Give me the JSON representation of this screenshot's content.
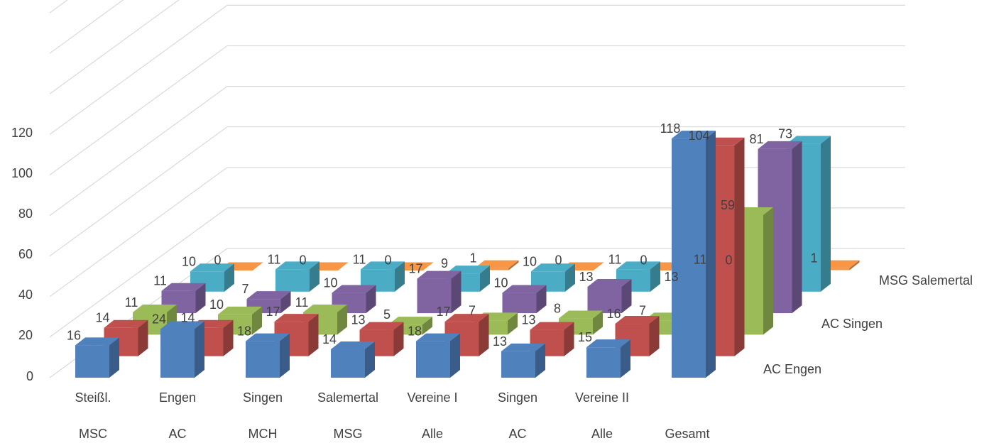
{
  "chart_data": {
    "type": "bar",
    "subtype": "3d-column",
    "title": "",
    "categories_line1": [
      "Steißl.",
      "Engen",
      "Singen",
      "Salemertal",
      "Vereine I",
      "Singen",
      "Vereine II",
      ""
    ],
    "categories_line2": [
      "MSC",
      "AC",
      "MCH",
      "MSG",
      "Alle",
      "AC",
      "Alle",
      "Gesamt"
    ],
    "depth_labels": [
      "AC Engen",
      "AC Singen",
      "MSG Salemertal"
    ],
    "ylim": [
      0,
      120
    ],
    "yticks": [
      "0",
      "20",
      "40",
      "60",
      "80",
      "100",
      "120"
    ],
    "grid": true,
    "series": [
      {
        "values": [
          16,
          24,
          18,
          14,
          18,
          13,
          15,
          118
        ],
        "labels": [
          "16",
          "24",
          "18",
          "14",
          "18",
          "13",
          "15",
          "118"
        ],
        "color": "#4f81bd"
      },
      {
        "values": [
          14,
          14,
          17,
          13,
          17,
          13,
          16,
          104
        ],
        "labels": [
          "14",
          "14",
          "17",
          "13",
          "17",
          "13",
          "16",
          "104"
        ],
        "color": "#c0504d"
      },
      {
        "values": [
          11,
          10,
          11,
          5,
          7,
          8,
          7,
          59
        ],
        "labels": [
          "11",
          "10",
          "11",
          "5",
          "7",
          "8",
          "7",
          "59"
        ],
        "color": "#9bbb59"
      },
      {
        "values": [
          11,
          7,
          10,
          17,
          10,
          13,
          13,
          81
        ],
        "labels": [
          "11",
          "7",
          "10",
          "17",
          "10",
          "13",
          "13",
          "81"
        ],
        "color": "#8064a2"
      },
      {
        "values": [
          10,
          11,
          11,
          9,
          10,
          11,
          11,
          73
        ],
        "labels": [
          "10",
          "11",
          "11",
          "9",
          "10",
          "11",
          "11",
          "73"
        ],
        "color": "#4bacc6"
      },
      {
        "values": [
          0,
          0,
          0,
          1,
          0,
          0,
          0,
          1
        ],
        "labels": [
          "0",
          "0",
          "0",
          "1",
          "0",
          "0",
          "0",
          "1"
        ],
        "color": "#f79646"
      }
    ]
  }
}
